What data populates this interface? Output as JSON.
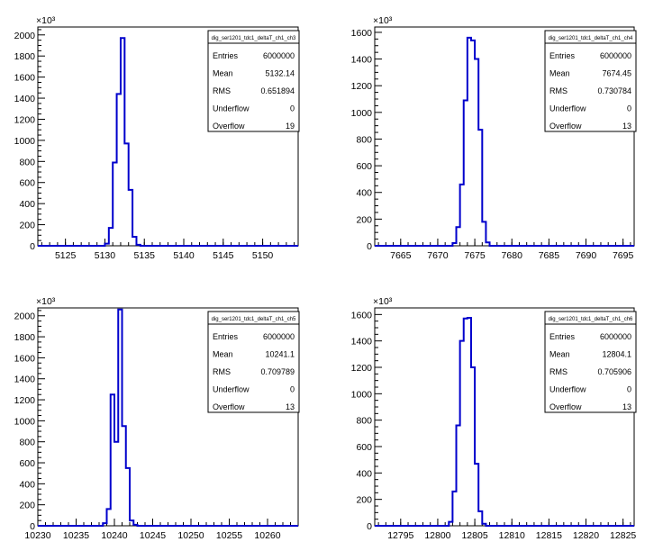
{
  "colors": {
    "line": "#0000cc",
    "axis": "#000000",
    "background": "#ffffff"
  },
  "chart_data": [
    {
      "type": "histogram",
      "title": "dig_ser1201_tdc1_deltaT_ch1_ch3",
      "exponent_label": "×10³",
      "y_multiplier": 1000,
      "xlim": [
        5121.5,
        5154.5
      ],
      "ylim": [
        0,
        2075
      ],
      "x_ticks": [
        5125,
        5130,
        5135,
        5140,
        5145,
        5150
      ],
      "x_tick_labels": [
        "5125",
        "5130",
        "5135",
        "5140",
        "5145",
        "5150"
      ],
      "y_ticks": [
        0,
        200,
        400,
        600,
        800,
        1000,
        1200,
        1400,
        1600,
        1800,
        2000
      ],
      "y_tick_labels": [
        "0",
        "200",
        "400",
        "600",
        "800",
        "1000",
        "1200",
        "1400",
        "1600",
        "1800",
        "2000"
      ],
      "bins": [
        {
          "x0": 5121.5,
          "x1": 5130.0,
          "y": 0
        },
        {
          "x0": 5130.0,
          "x1": 5130.5,
          "y": 20
        },
        {
          "x0": 5130.5,
          "x1": 5131.0,
          "y": 170
        },
        {
          "x0": 5131.0,
          "x1": 5131.5,
          "y": 790
        },
        {
          "x0": 5131.5,
          "x1": 5132.0,
          "y": 1440
        },
        {
          "x0": 5132.0,
          "x1": 5132.5,
          "y": 1970
        },
        {
          "x0": 5132.5,
          "x1": 5133.0,
          "y": 970
        },
        {
          "x0": 5133.0,
          "x1": 5133.5,
          "y": 530
        },
        {
          "x0": 5133.5,
          "x1": 5134.0,
          "y": 85
        },
        {
          "x0": 5134.0,
          "x1": 5134.5,
          "y": 10
        },
        {
          "x0": 5134.5,
          "x1": 5154.5,
          "y": 0
        }
      ],
      "stats": [
        {
          "label": "Entries",
          "value": "6000000"
        },
        {
          "label": "Mean",
          "value": "5132.14"
        },
        {
          "label": "RMS",
          "value": "0.651894"
        },
        {
          "label": "Underflow",
          "value": "0"
        },
        {
          "label": "Overflow",
          "value": "19"
        }
      ]
    },
    {
      "type": "histogram",
      "title": "dig_ser1201_tdc1_deltaT_ch1_ch4",
      "exponent_label": "×10³",
      "y_multiplier": 1000,
      "xlim": [
        7661.5,
        7696.5
      ],
      "ylim": [
        0,
        1640
      ],
      "x_ticks": [
        7665,
        7670,
        7675,
        7680,
        7685,
        7690,
        7695
      ],
      "x_tick_labels": [
        "7665",
        "7670",
        "7675",
        "7680",
        "7685",
        "7690",
        "7695"
      ],
      "y_ticks": [
        0,
        200,
        400,
        600,
        800,
        1000,
        1200,
        1400,
        1600
      ],
      "y_tick_labels": [
        "0",
        "200",
        "400",
        "600",
        "800",
        "1000",
        "1200",
        "1400",
        "1600"
      ],
      "bins": [
        {
          "x0": 7661.5,
          "x1": 7672.0,
          "y": 0
        },
        {
          "x0": 7672.0,
          "x1": 7672.5,
          "y": 20
        },
        {
          "x0": 7672.5,
          "x1": 7673.0,
          "y": 140
        },
        {
          "x0": 7673.0,
          "x1": 7673.5,
          "y": 460
        },
        {
          "x0": 7673.5,
          "x1": 7674.0,
          "y": 1090
        },
        {
          "x0": 7674.0,
          "x1": 7674.5,
          "y": 1560
        },
        {
          "x0": 7674.5,
          "x1": 7675.0,
          "y": 1540
        },
        {
          "x0": 7675.0,
          "x1": 7675.5,
          "y": 1400
        },
        {
          "x0": 7675.5,
          "x1": 7676.0,
          "y": 870
        },
        {
          "x0": 7676.0,
          "x1": 7676.5,
          "y": 180
        },
        {
          "x0": 7676.5,
          "x1": 7677.0,
          "y": 25
        },
        {
          "x0": 7677.0,
          "x1": 7696.5,
          "y": 0
        }
      ],
      "stats": [
        {
          "label": "Entries",
          "value": "6000000"
        },
        {
          "label": "Mean",
          "value": "7674.45"
        },
        {
          "label": "RMS",
          "value": "0.730784"
        },
        {
          "label": "Underflow",
          "value": "0"
        },
        {
          "label": "Overflow",
          "value": "13"
        }
      ]
    },
    {
      "type": "histogram",
      "title": "dig_ser1201_tdc1_deltaT_ch1_ch5",
      "exponent_label": "×10³",
      "y_multiplier": 1000,
      "xlim": [
        10230,
        10264
      ],
      "ylim": [
        0,
        2075
      ],
      "x_ticks": [
        10230,
        10235,
        10240,
        10245,
        10250,
        10255,
        10260
      ],
      "x_tick_labels": [
        "10230",
        "10235",
        "10240",
        "10245",
        "10250",
        "10255",
        "10260"
      ],
      "y_ticks": [
        0,
        200,
        400,
        600,
        800,
        1000,
        1200,
        1400,
        1600,
        1800,
        2000
      ],
      "y_tick_labels": [
        "0",
        "200",
        "400",
        "600",
        "800",
        "1000",
        "1200",
        "1400",
        "1600",
        "1800",
        "2000"
      ],
      "bins": [
        {
          "x0": 10230.0,
          "x1": 10238.5,
          "y": 0
        },
        {
          "x0": 10238.5,
          "x1": 10239.0,
          "y": 25
        },
        {
          "x0": 10239.0,
          "x1": 10239.5,
          "y": 160
        },
        {
          "x0": 10239.5,
          "x1": 10240.0,
          "y": 1250
        },
        {
          "x0": 10240.0,
          "x1": 10240.5,
          "y": 800
        },
        {
          "x0": 10240.5,
          "x1": 10241.0,
          "y": 2060
        },
        {
          "x0": 10241.0,
          "x1": 10241.5,
          "y": 950
        },
        {
          "x0": 10241.5,
          "x1": 10242.0,
          "y": 550
        },
        {
          "x0": 10242.0,
          "x1": 10242.5,
          "y": 50
        },
        {
          "x0": 10242.5,
          "x1": 10243.0,
          "y": 10
        },
        {
          "x0": 10243.0,
          "x1": 10264.0,
          "y": 0
        }
      ],
      "stats": [
        {
          "label": "Entries",
          "value": "6000000"
        },
        {
          "label": "Mean",
          "value": "10241.1"
        },
        {
          "label": "RMS",
          "value": "0.709789"
        },
        {
          "label": "Underflow",
          "value": "0"
        },
        {
          "label": "Overflow",
          "value": "13"
        }
      ]
    },
    {
      "type": "histogram",
      "title": "dig_ser1201_tdc1_deltaT_ch1_ch6",
      "exponent_label": "×10³",
      "y_multiplier": 1000,
      "xlim": [
        12791.5,
        12826.5
      ],
      "ylim": [
        0,
        1650
      ],
      "x_ticks": [
        12795,
        12800,
        12805,
        12810,
        12815,
        12820,
        12825
      ],
      "x_tick_labels": [
        "12795",
        "12800",
        "12805",
        "12810",
        "12815",
        "12820",
        "12825"
      ],
      "y_ticks": [
        0,
        200,
        400,
        600,
        800,
        1000,
        1200,
        1400,
        1600
      ],
      "y_tick_labels": [
        "0",
        "200",
        "400",
        "600",
        "800",
        "1000",
        "1200",
        "1400",
        "1600"
      ],
      "bins": [
        {
          "x0": 12791.5,
          "x1": 12801.5,
          "y": 0
        },
        {
          "x0": 12801.5,
          "x1": 12802.0,
          "y": 30
        },
        {
          "x0": 12802.0,
          "x1": 12802.5,
          "y": 260
        },
        {
          "x0": 12802.5,
          "x1": 12803.0,
          "y": 760
        },
        {
          "x0": 12803.0,
          "x1": 12803.5,
          "y": 1400
        },
        {
          "x0": 12803.5,
          "x1": 12804.0,
          "y": 1570
        },
        {
          "x0": 12804.0,
          "x1": 12804.5,
          "y": 1575
        },
        {
          "x0": 12804.5,
          "x1": 12805.0,
          "y": 1200
        },
        {
          "x0": 12805.0,
          "x1": 12805.5,
          "y": 470
        },
        {
          "x0": 12805.5,
          "x1": 12806.0,
          "y": 110
        },
        {
          "x0": 12806.0,
          "x1": 12806.5,
          "y": 15
        },
        {
          "x0": 12806.5,
          "x1": 12826.5,
          "y": 0
        }
      ],
      "stats": [
        {
          "label": "Entries",
          "value": "6000000"
        },
        {
          "label": "Mean",
          "value": "12804.1"
        },
        {
          "label": "RMS",
          "value": "0.705906"
        },
        {
          "label": "Underflow",
          "value": "0"
        },
        {
          "label": "Overflow",
          "value": "13"
        }
      ]
    }
  ]
}
